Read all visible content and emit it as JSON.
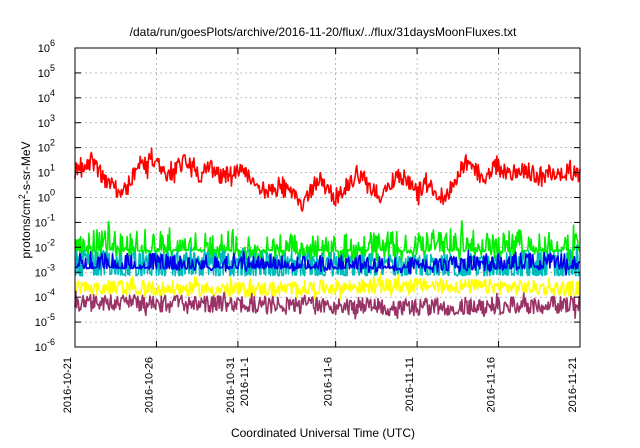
{
  "chart_data": {
    "type": "line",
    "title": "/data/run/goesPlots/archive/2016-11-20/flux/../flux/31daysMoonFluxes.txt",
    "xlabel": "Coordinated Universal Time (UTC)",
    "ylabel_parts": {
      "pre": "protons/cm",
      "sup": "2",
      "post": "-s-sr-MeV"
    },
    "yscale": "log",
    "ylim_exp": [
      -6,
      6
    ],
    "y_tick_labels": [
      {
        "base": "10",
        "exp": "6"
      },
      {
        "base": "10",
        "exp": "5"
      },
      {
        "base": "10",
        "exp": "4"
      },
      {
        "base": "10",
        "exp": "3"
      },
      {
        "base": "10",
        "exp": "2"
      },
      {
        "base": "10",
        "exp": "1"
      },
      {
        "base": "10",
        "exp": "0"
      },
      {
        "base": "10",
        "exp": "-1"
      },
      {
        "base": "10",
        "exp": "-2"
      },
      {
        "base": "10",
        "exp": "-3"
      },
      {
        "base": "10",
        "exp": "-4"
      },
      {
        "base": "10",
        "exp": "-5"
      },
      {
        "base": "10",
        "exp": "-6"
      }
    ],
    "x_range_days": [
      0,
      31
    ],
    "x_ticks": [
      {
        "day": 0,
        "lines": [
          "2016-10-21"
        ]
      },
      {
        "day": 5,
        "lines": [
          "2016-10-26"
        ]
      },
      {
        "day": 10,
        "lines": [
          "2016-10-31",
          "2016-11-1"
        ]
      },
      {
        "day": 16,
        "lines": [
          "2016-11-6"
        ]
      },
      {
        "day": 21,
        "lines": [
          "2016-11-11"
        ]
      },
      {
        "day": 26,
        "lines": [
          "2016-11-16"
        ]
      },
      {
        "day": 31,
        "lines": [
          "2016-11-21"
        ]
      }
    ],
    "grid": true,
    "series": [
      {
        "color": "#ff0000",
        "base_values": [
          10,
          20,
          25,
          30,
          15,
          8,
          4,
          3,
          2,
          1.5,
          5,
          10,
          20,
          15,
          40,
          30,
          12,
          10,
          8,
          15,
          25,
          20,
          10,
          8,
          12,
          15,
          10,
          6,
          8,
          10,
          12,
          10,
          8,
          5,
          3,
          2,
          1.5,
          2.5,
          4,
          3,
          2,
          1,
          0.5,
          1.5,
          3,
          6,
          3,
          1.5,
          1,
          2,
          3,
          5,
          8,
          6,
          3,
          2,
          1.5,
          2,
          4,
          6,
          8,
          5,
          3,
          1.5,
          2.5,
          3.5,
          2,
          1.5,
          1,
          2,
          3,
          15,
          25,
          15,
          10,
          8,
          6,
          15,
          20,
          12,
          8,
          10,
          15,
          12,
          10,
          8,
          6,
          10,
          12,
          8,
          8,
          12,
          10,
          8
        ],
        "noise_decades": 0.35
      },
      {
        "color": "#00ee00",
        "base_values": [
          0.015,
          0.012,
          0.008,
          0.015,
          0.01
        ],
        "noise_decades": 0.6,
        "floor": 0.0075
      },
      {
        "color": "#00bbbb",
        "base_values": [
          0.0045,
          0.004,
          0.003,
          0.005
        ],
        "noise_decades": 0.25,
        "floor": 0.0008
      },
      {
        "color": "#0000ee",
        "base_values": [
          0.003,
          0.0025,
          0.002,
          0.003
        ],
        "noise_decades": 0.35,
        "floor": 0.0015
      },
      {
        "color": "#ffff00",
        "base_values": [
          0.00025,
          0.0002,
          0.0003,
          0.00022
        ],
        "noise_decades": 0.3
      },
      {
        "color": "#993366",
        "base_values": [
          6e-05,
          5e-05,
          4e-05,
          5e-05
        ],
        "noise_decades": 0.35
      }
    ]
  }
}
